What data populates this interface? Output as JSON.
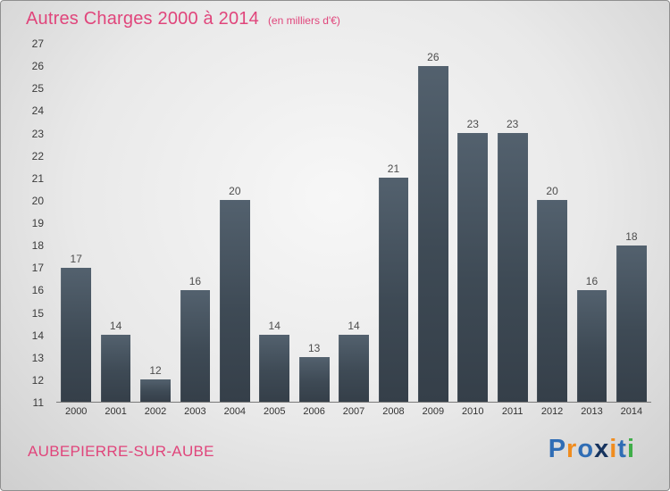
{
  "header": {
    "title": "Autres Charges 2000 à 2014",
    "subtitle": "(en milliers d'€)"
  },
  "chart_data": {
    "type": "bar",
    "categories": [
      "2000",
      "2001",
      "2002",
      "2003",
      "2004",
      "2005",
      "2006",
      "2007",
      "2008",
      "2009",
      "2010",
      "2011",
      "2012",
      "2013",
      "2014"
    ],
    "values": [
      17,
      14,
      12,
      16,
      20,
      14,
      13,
      14,
      21,
      26,
      23,
      23,
      20,
      16,
      18
    ],
    "title": "Autres Charges 2000 à 2014",
    "subtitle": "(en milliers d'€)",
    "xlabel": "",
    "ylabel": "",
    "ylim": [
      11,
      27
    ],
    "ytick_step": 1,
    "grid": false,
    "legend": false,
    "bar_color_top": "#53616e",
    "bar_color_bottom": "#353f49",
    "value_labels": true
  },
  "footer": {
    "location": "AUBEPIERRE-SUR-AUBE",
    "logo": {
      "text": "Proxiti",
      "letters": [
        {
          "ch": "P",
          "color": "#2f6db5"
        },
        {
          "ch": "r",
          "color": "#f08c1e"
        },
        {
          "ch": "o",
          "color": "#2f6db5"
        },
        {
          "ch": "x",
          "color": "#16335e"
        },
        {
          "ch": "i",
          "color": "#f08c1e"
        },
        {
          "ch": "t",
          "color": "#2f6db5"
        },
        {
          "ch": "i",
          "color": "#3fae49"
        }
      ]
    }
  },
  "colors": {
    "accent_pink": "#e0457b",
    "axis_text": "#3a3a3a",
    "value_label_text": "#4d4d4d"
  }
}
